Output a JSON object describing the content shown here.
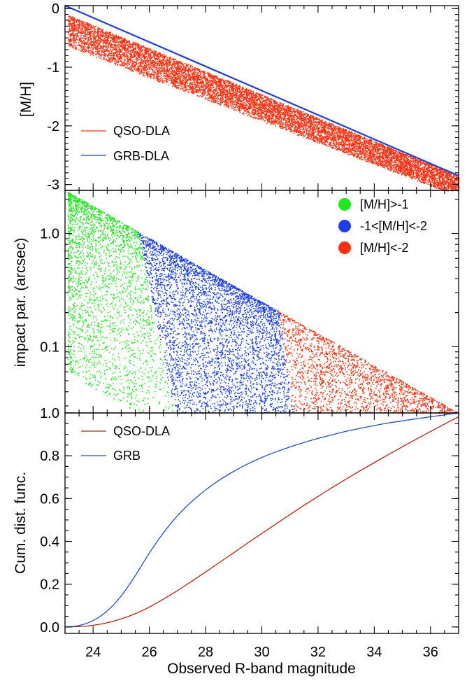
{
  "figure": {
    "xlabel": "Observed R-band magnitude"
  },
  "chart_data": [
    {
      "id": "panel-metallicity",
      "type": "scatter",
      "ylabel": "[M/H]",
      "xlim": [
        23,
        37
      ],
      "ylim": [
        -3.1,
        0.05
      ],
      "yticks": [
        0,
        -1,
        -2,
        -3
      ],
      "ytick_labels": [
        "0",
        "-1",
        "-2",
        "-3"
      ],
      "series": [
        {
          "name": "QSO-DLA",
          "kind": "points",
          "color": "#ff3010",
          "band_upper": [
            [
              23.1,
              -0.1
            ],
            [
              37,
              -2.85
            ]
          ],
          "band_lower": [
            [
              23.1,
              -0.7
            ],
            [
              37,
              -3.25
            ]
          ]
        },
        {
          "name": "GRB-DLA",
          "kind": "line",
          "color": "#1c3ee8",
          "x": [
            23,
            37
          ],
          "y": [
            0.05,
            -2.85
          ]
        }
      ],
      "legend": {
        "position": "bottom-left",
        "entries": [
          "QSO-DLA",
          "GRB-DLA"
        ]
      }
    },
    {
      "id": "panel-impact",
      "type": "scatter",
      "ylabel": "impact par. (arcsec)",
      "yscale": "log",
      "xlim": [
        23,
        37
      ],
      "ylim": [
        0.026,
        2.4
      ],
      "yticks": [
        1.0,
        0.1
      ],
      "ytick_labels": [
        "1.0",
        "0.1"
      ],
      "upper_envelope": [
        [
          23,
          2.4
        ],
        [
          37,
          0.026
        ]
      ],
      "series": [
        {
          "name": "[M/H]>-1",
          "color": "#1ee81e",
          "x_range": [
            23.1,
            27
          ]
        },
        {
          "name": "-1<[M/H]<-2",
          "color": "#1c3ee8",
          "x_range": [
            25.5,
            31.2
          ]
        },
        {
          "name": "[M/H]<-2",
          "color": "#ff3010",
          "x_range": [
            30.2,
            37
          ]
        }
      ],
      "legend": {
        "position": "top-right",
        "entries": [
          "[M/H]>-1",
          "-1<[M/H]<-2",
          "[M/H]<-2"
        ]
      }
    },
    {
      "id": "panel-cdf",
      "type": "line",
      "ylabel": "Cum. dist. func.",
      "xlim": [
        23,
        37
      ],
      "ylim": [
        -0.03,
        1.0
      ],
      "xticks": [
        24,
        26,
        28,
        30,
        32,
        34,
        36
      ],
      "yticks": [
        0.0,
        0.2,
        0.4,
        0.6,
        0.8,
        1.0
      ],
      "ytick_labels": [
        "0.0",
        "0.2",
        "0.4",
        "0.6",
        "0.8",
        "1.0"
      ],
      "series": [
        {
          "name": "QSO-DLA",
          "color": "#c02010",
          "x": [
            23,
            23.5,
            24,
            24.5,
            25,
            25.5,
            26,
            26.5,
            27,
            27.5,
            28,
            28.5,
            29,
            29.5,
            30,
            30.5,
            31,
            31.5,
            32,
            32.5,
            33,
            33.5,
            34,
            34.5,
            35,
            35.5,
            36,
            36.5,
            37
          ],
          "y": [
            0.0,
            0.002,
            0.008,
            0.02,
            0.038,
            0.062,
            0.093,
            0.13,
            0.17,
            0.213,
            0.257,
            0.302,
            0.347,
            0.392,
            0.437,
            0.481,
            0.525,
            0.568,
            0.61,
            0.651,
            0.691,
            0.73,
            0.768,
            0.805,
            0.842,
            0.878,
            0.913,
            0.948,
            0.982
          ]
        },
        {
          "name": "GRB",
          "color": "#2050c8",
          "x": [
            23,
            23.5,
            24,
            24.5,
            25,
            25.5,
            26,
            26.5,
            27,
            27.5,
            28,
            28.5,
            29,
            29.5,
            30,
            30.5,
            31,
            31.5,
            32,
            32.5,
            33,
            33.5,
            34,
            34.5,
            35,
            35.5,
            36,
            36.5,
            37
          ],
          "y": [
            0.0,
            0.007,
            0.03,
            0.075,
            0.145,
            0.24,
            0.345,
            0.44,
            0.52,
            0.585,
            0.64,
            0.687,
            0.727,
            0.762,
            0.792,
            0.818,
            0.841,
            0.862,
            0.881,
            0.898,
            0.914,
            0.928,
            0.941,
            0.953,
            0.963,
            0.973,
            0.982,
            0.991,
            1.0
          ]
        }
      ],
      "legend": {
        "position": "top-left",
        "entries": [
          "QSO-DLA",
          "GRB"
        ]
      }
    }
  ]
}
